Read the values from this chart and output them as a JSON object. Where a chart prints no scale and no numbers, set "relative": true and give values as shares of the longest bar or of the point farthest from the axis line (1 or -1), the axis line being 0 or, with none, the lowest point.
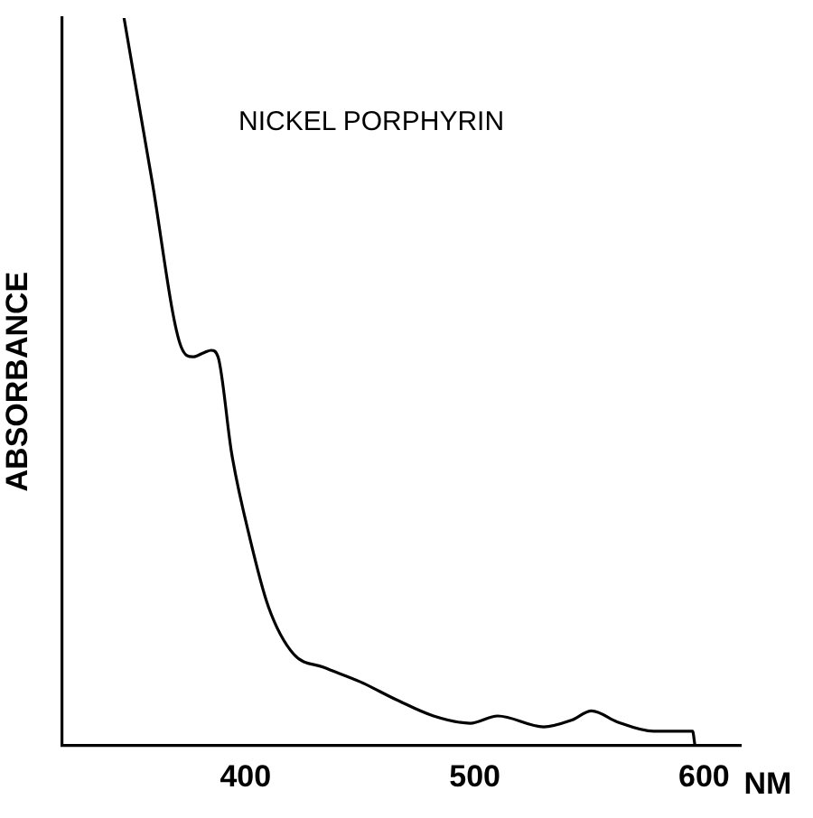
{
  "chart_data": {
    "type": "line",
    "title": "NICKEL PORPHYRIN",
    "xlabel": "NM",
    "ylabel": "ABSORBANCE",
    "relative": true,
    "x": [
      347,
      359,
      372,
      377,
      382,
      385,
      388,
      394,
      402,
      410,
      421,
      434,
      450,
      466,
      482,
      498,
      510,
      530,
      542,
      551,
      562,
      578,
      595,
      596
    ],
    "series": [
      {
        "color": "#000000",
        "values": [
          1.0,
          0.78,
          0.547,
          0.534,
          0.54,
          0.543,
          0.534,
          0.4,
          0.283,
          0.19,
          0.125,
          0.107,
          0.087,
          0.062,
          0.04,
          0.03,
          0.04,
          0.025,
          0.034,
          0.047,
          0.032,
          0.019,
          0.019,
          0
        ]
      }
    ],
    "xlim": [
      320,
      616
    ],
    "xticks": [
      400,
      500,
      600
    ],
    "grid": false,
    "legend": false,
    "marker": "none",
    "line_style": "solid"
  }
}
